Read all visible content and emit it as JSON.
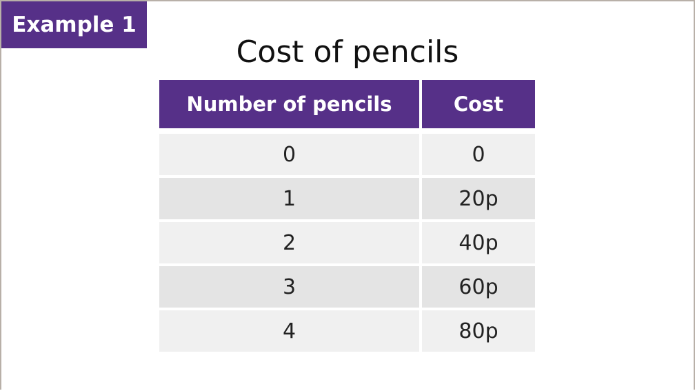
{
  "badge": "Example 1",
  "title": "Cost of pencils",
  "table": {
    "headers": [
      "Number of pencils",
      "Cost"
    ],
    "rows": [
      [
        "0",
        "0"
      ],
      [
        "1",
        "20p"
      ],
      [
        "2",
        "40p"
      ],
      [
        "3",
        "60p"
      ],
      [
        "4",
        "80p"
      ]
    ]
  },
  "colors": {
    "accent": "#563088",
    "row_light": "#f0f0f0",
    "row_dark": "#e4e4e4"
  }
}
